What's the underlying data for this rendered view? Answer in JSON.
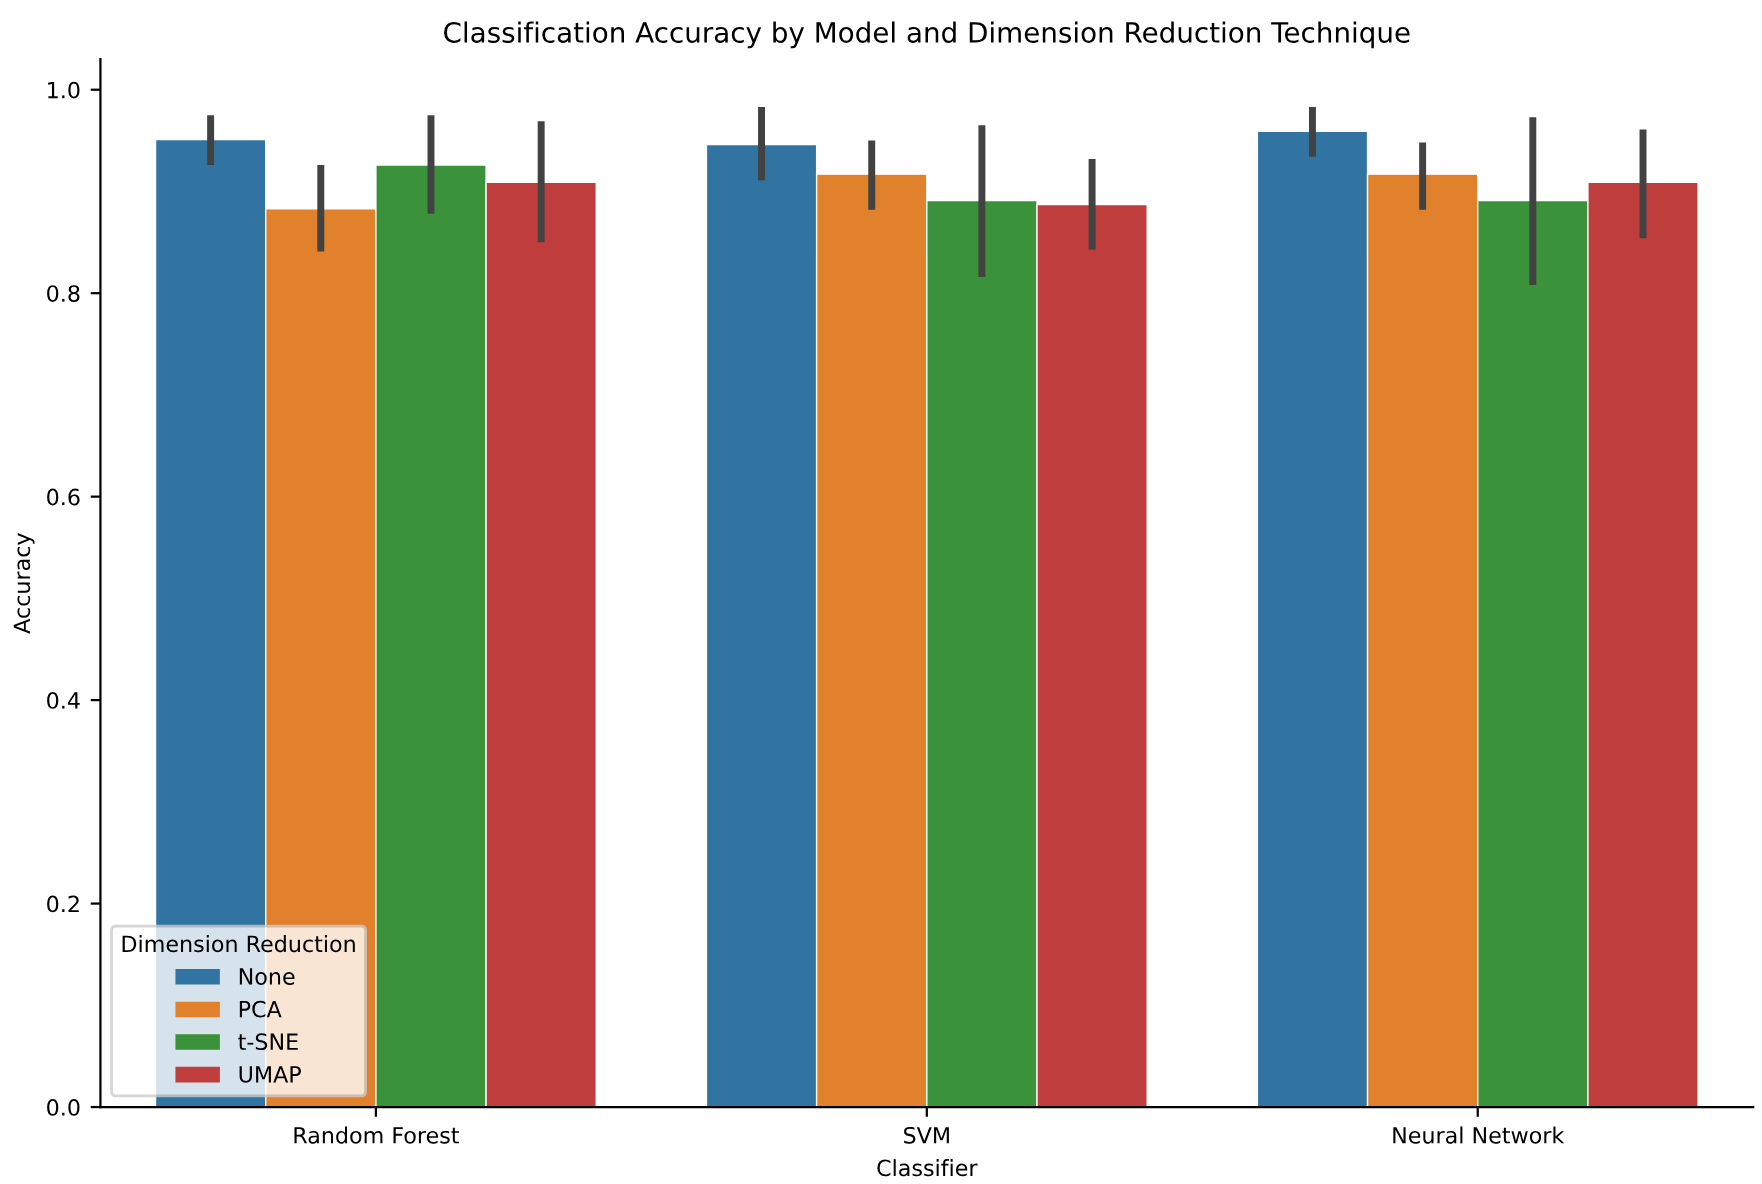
{
  "chart_data": {
    "type": "bar",
    "title": "Classification Accuracy by Model and Dimension Reduction Technique",
    "xlabel": "Classifier",
    "ylabel": "Accuracy",
    "legend_title": "Dimension Reduction",
    "categories": [
      "Random Forest",
      "SVM",
      "Neural Network"
    ],
    "series": [
      {
        "name": "None",
        "color": "#3274a1",
        "values": [
          0.951,
          0.946,
          0.959
        ],
        "errors": [
          [
            0.926,
            0.975
          ],
          [
            0.911,
            0.983
          ],
          [
            0.934,
            0.983
          ]
        ]
      },
      {
        "name": "PCA",
        "color": "#e1812c",
        "values": [
          0.883,
          0.917,
          0.917
        ],
        "errors": [
          [
            0.841,
            0.926
          ],
          [
            0.882,
            0.95
          ],
          [
            0.882,
            0.948
          ]
        ]
      },
      {
        "name": "t-SNE",
        "color": "#3a923a",
        "values": [
          0.926,
          0.891,
          0.891
        ],
        "errors": [
          [
            0.878,
            0.975
          ],
          [
            0.816,
            0.965
          ],
          [
            0.808,
            0.973
          ]
        ]
      },
      {
        "name": "UMAP",
        "color": "#c03d3e",
        "values": [
          0.909,
          0.887,
          0.909
        ],
        "errors": [
          [
            0.85,
            0.969
          ],
          [
            0.843,
            0.932
          ],
          [
            0.854,
            0.961
          ]
        ]
      }
    ],
    "ylim": [
      0,
      1.03
    ],
    "yticks": [
      {
        "value": 0,
        "label": "0.0"
      },
      0.2,
      0.4,
      0.6,
      0.8,
      {
        "value": 1,
        "label": "1.0"
      }
    ],
    "grid": false,
    "legend": "bottom left"
  }
}
